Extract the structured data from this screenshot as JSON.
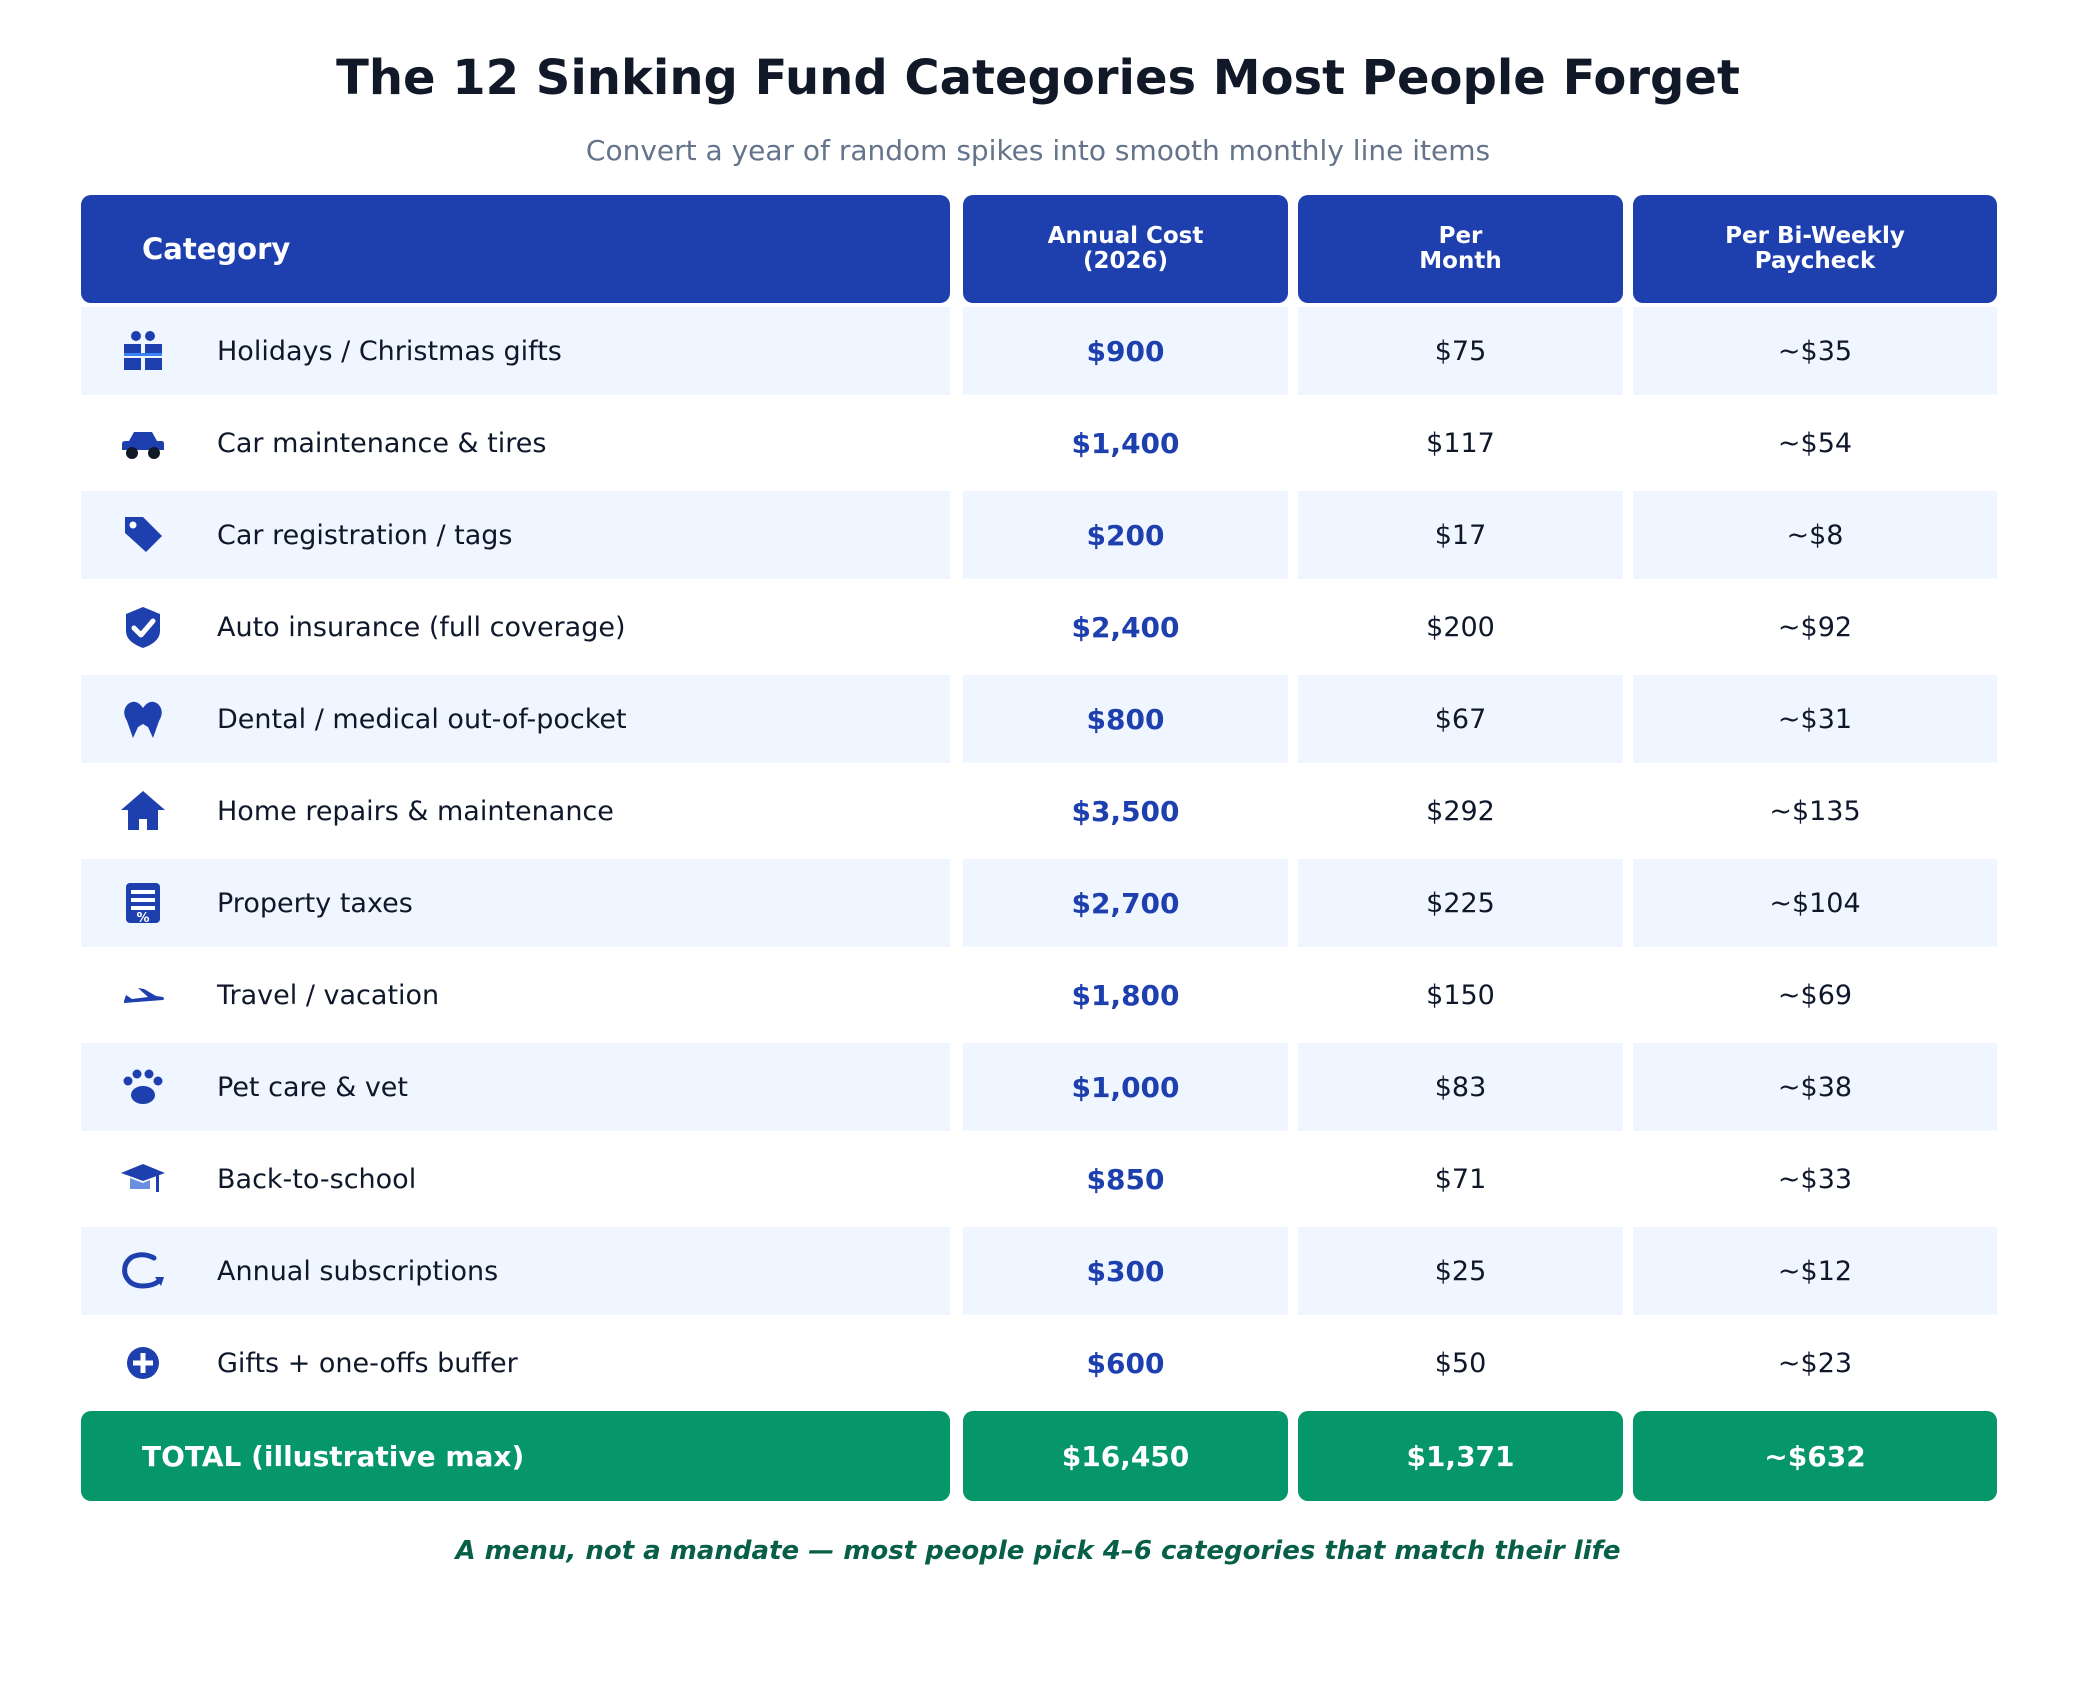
{
  "title": "The 12 Sinking Fund Categories Most People Forget",
  "subtitle": "Convert a year of random spikes into smooth monthly line items",
  "colors": {
    "header": "#1e40af",
    "accent": "#1e40af",
    "total": "#059669",
    "row_alt": "#eff6ff",
    "footnote": "#065f46"
  },
  "chart_data": {
    "type": "table",
    "columns": [
      "Category",
      "Annual Cost\n(2026)",
      "Per\nMonth",
      "Per Bi-Weekly\nPaycheck"
    ],
    "rows": [
      {
        "icon": "gift-icon",
        "category": "Holidays / Christmas gifts",
        "annual": "$900",
        "monthly": "$75",
        "biweekly": "~$35"
      },
      {
        "icon": "car-icon",
        "category": "Car maintenance & tires",
        "annual": "$1,400",
        "monthly": "$117",
        "biweekly": "~$54"
      },
      {
        "icon": "tag-icon",
        "category": "Car registration / tags",
        "annual": "$200",
        "monthly": "$17",
        "biweekly": "~$8"
      },
      {
        "icon": "shield-check-icon",
        "category": "Auto insurance (full coverage)",
        "annual": "$2,400",
        "monthly": "$200",
        "biweekly": "~$92"
      },
      {
        "icon": "tooth-icon",
        "category": "Dental / medical out-of-pocket",
        "annual": "$800",
        "monthly": "$67",
        "biweekly": "~$31"
      },
      {
        "icon": "house-icon",
        "category": "Home repairs & maintenance",
        "annual": "$3,500",
        "monthly": "$292",
        "biweekly": "~$135"
      },
      {
        "icon": "tax-document-icon",
        "category": "Property taxes",
        "annual": "$2,700",
        "monthly": "$225",
        "biweekly": "~$104"
      },
      {
        "icon": "airplane-icon",
        "category": "Travel / vacation",
        "annual": "$1,800",
        "monthly": "$150",
        "biweekly": "~$69"
      },
      {
        "icon": "paw-icon",
        "category": "Pet care & vet",
        "annual": "$1,000",
        "monthly": "$83",
        "biweekly": "~$38"
      },
      {
        "icon": "graduation-cap-icon",
        "category": "Back-to-school",
        "annual": "$850",
        "monthly": "$71",
        "biweekly": "~$33"
      },
      {
        "icon": "refresh-icon",
        "category": "Annual subscriptions",
        "annual": "$300",
        "monthly": "$25",
        "biweekly": "~$12"
      },
      {
        "icon": "plus-circle-icon",
        "category": "Gifts + one-offs buffer",
        "annual": "$600",
        "monthly": "$50",
        "biweekly": "~$23"
      }
    ],
    "total": {
      "label": "TOTAL  (illustrative max)",
      "annual": "$16,450",
      "monthly": "$1,371",
      "biweekly": "~$632"
    }
  },
  "footnote": "A menu, not a mandate — most people pick 4–6 categories that match their life"
}
